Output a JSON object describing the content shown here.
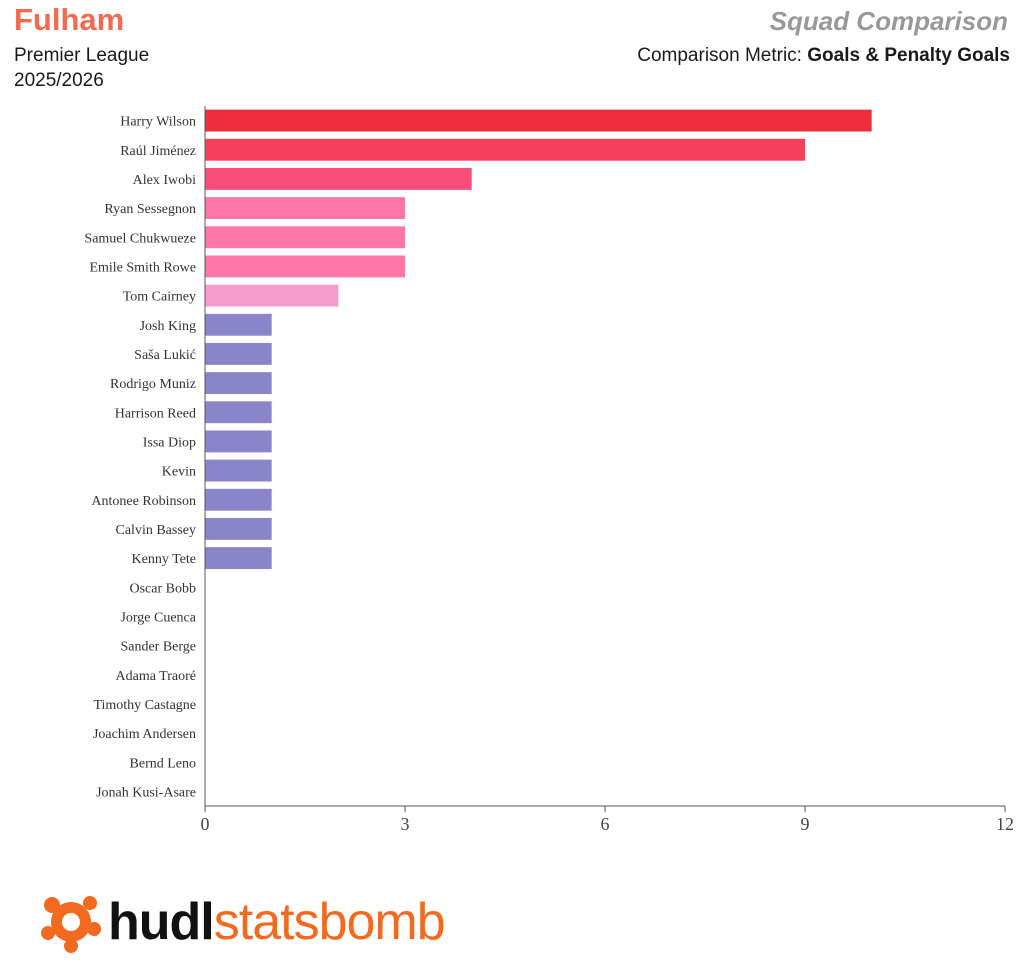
{
  "header": {
    "team": "Fulham",
    "competition": "Premier League",
    "season": "2025/2026",
    "title": "Squad Comparison",
    "metric_label": "Comparison Metric:",
    "metric_value": "Goals & Penalty Goals"
  },
  "colors": {
    "team": "#f26a4f",
    "title": "#999999",
    "logo_orange": "#f26a1f"
  },
  "logo": {
    "text_part1": "hudl",
    "text_part2": "statsbomb",
    "icon": "hudl-statsbomb-logo-icon"
  },
  "chart_data": {
    "type": "bar",
    "orientation": "horizontal",
    "categories": [
      "Harry Wilson",
      "Raúl Jiménez",
      "Alex Iwobi",
      "Ryan Sessegnon",
      "Samuel Chukwueze",
      "Emile Smith Rowe",
      "Tom Cairney",
      "Josh King",
      "Saša Lukić",
      "Rodrigo Muniz",
      "Harrison Reed",
      "Issa Diop",
      "Kevin",
      "Antonee Robinson",
      "Calvin Bassey",
      "Kenny Tete",
      "Oscar Bobb",
      "Jorge Cuenca",
      "Sander Berge",
      "Adama Traoré",
      "Timothy Castagne",
      "Joachim Andersen",
      "Bernd Leno",
      "Jonah Kusi-Asare"
    ],
    "values": [
      10,
      9,
      4,
      3,
      3,
      3,
      2,
      1,
      1,
      1,
      1,
      1,
      1,
      1,
      1,
      1,
      0,
      0,
      0,
      0,
      0,
      0,
      0,
      0
    ],
    "bar_colors": [
      "#ee2e3c",
      "#f5405c",
      "#fa4c78",
      "#fc76a6",
      "#fc76a6",
      "#fc76a6",
      "#f69ccd",
      "#8a84c9",
      "#8a84c9",
      "#8a84c9",
      "#8a84c9",
      "#8a84c9",
      "#8a84c9",
      "#8a84c9",
      "#8a84c9",
      "#8a84c9",
      "#8a84c9",
      "#8a84c9",
      "#8a84c9",
      "#8a84c9",
      "#8a84c9",
      "#8a84c9",
      "#8a84c9",
      "#8a84c9"
    ],
    "xlim": [
      0,
      12
    ],
    "xticks": [
      0,
      3,
      6,
      9,
      12
    ],
    "xlabel": "",
    "ylabel": "",
    "grid": false,
    "legend": "none"
  }
}
